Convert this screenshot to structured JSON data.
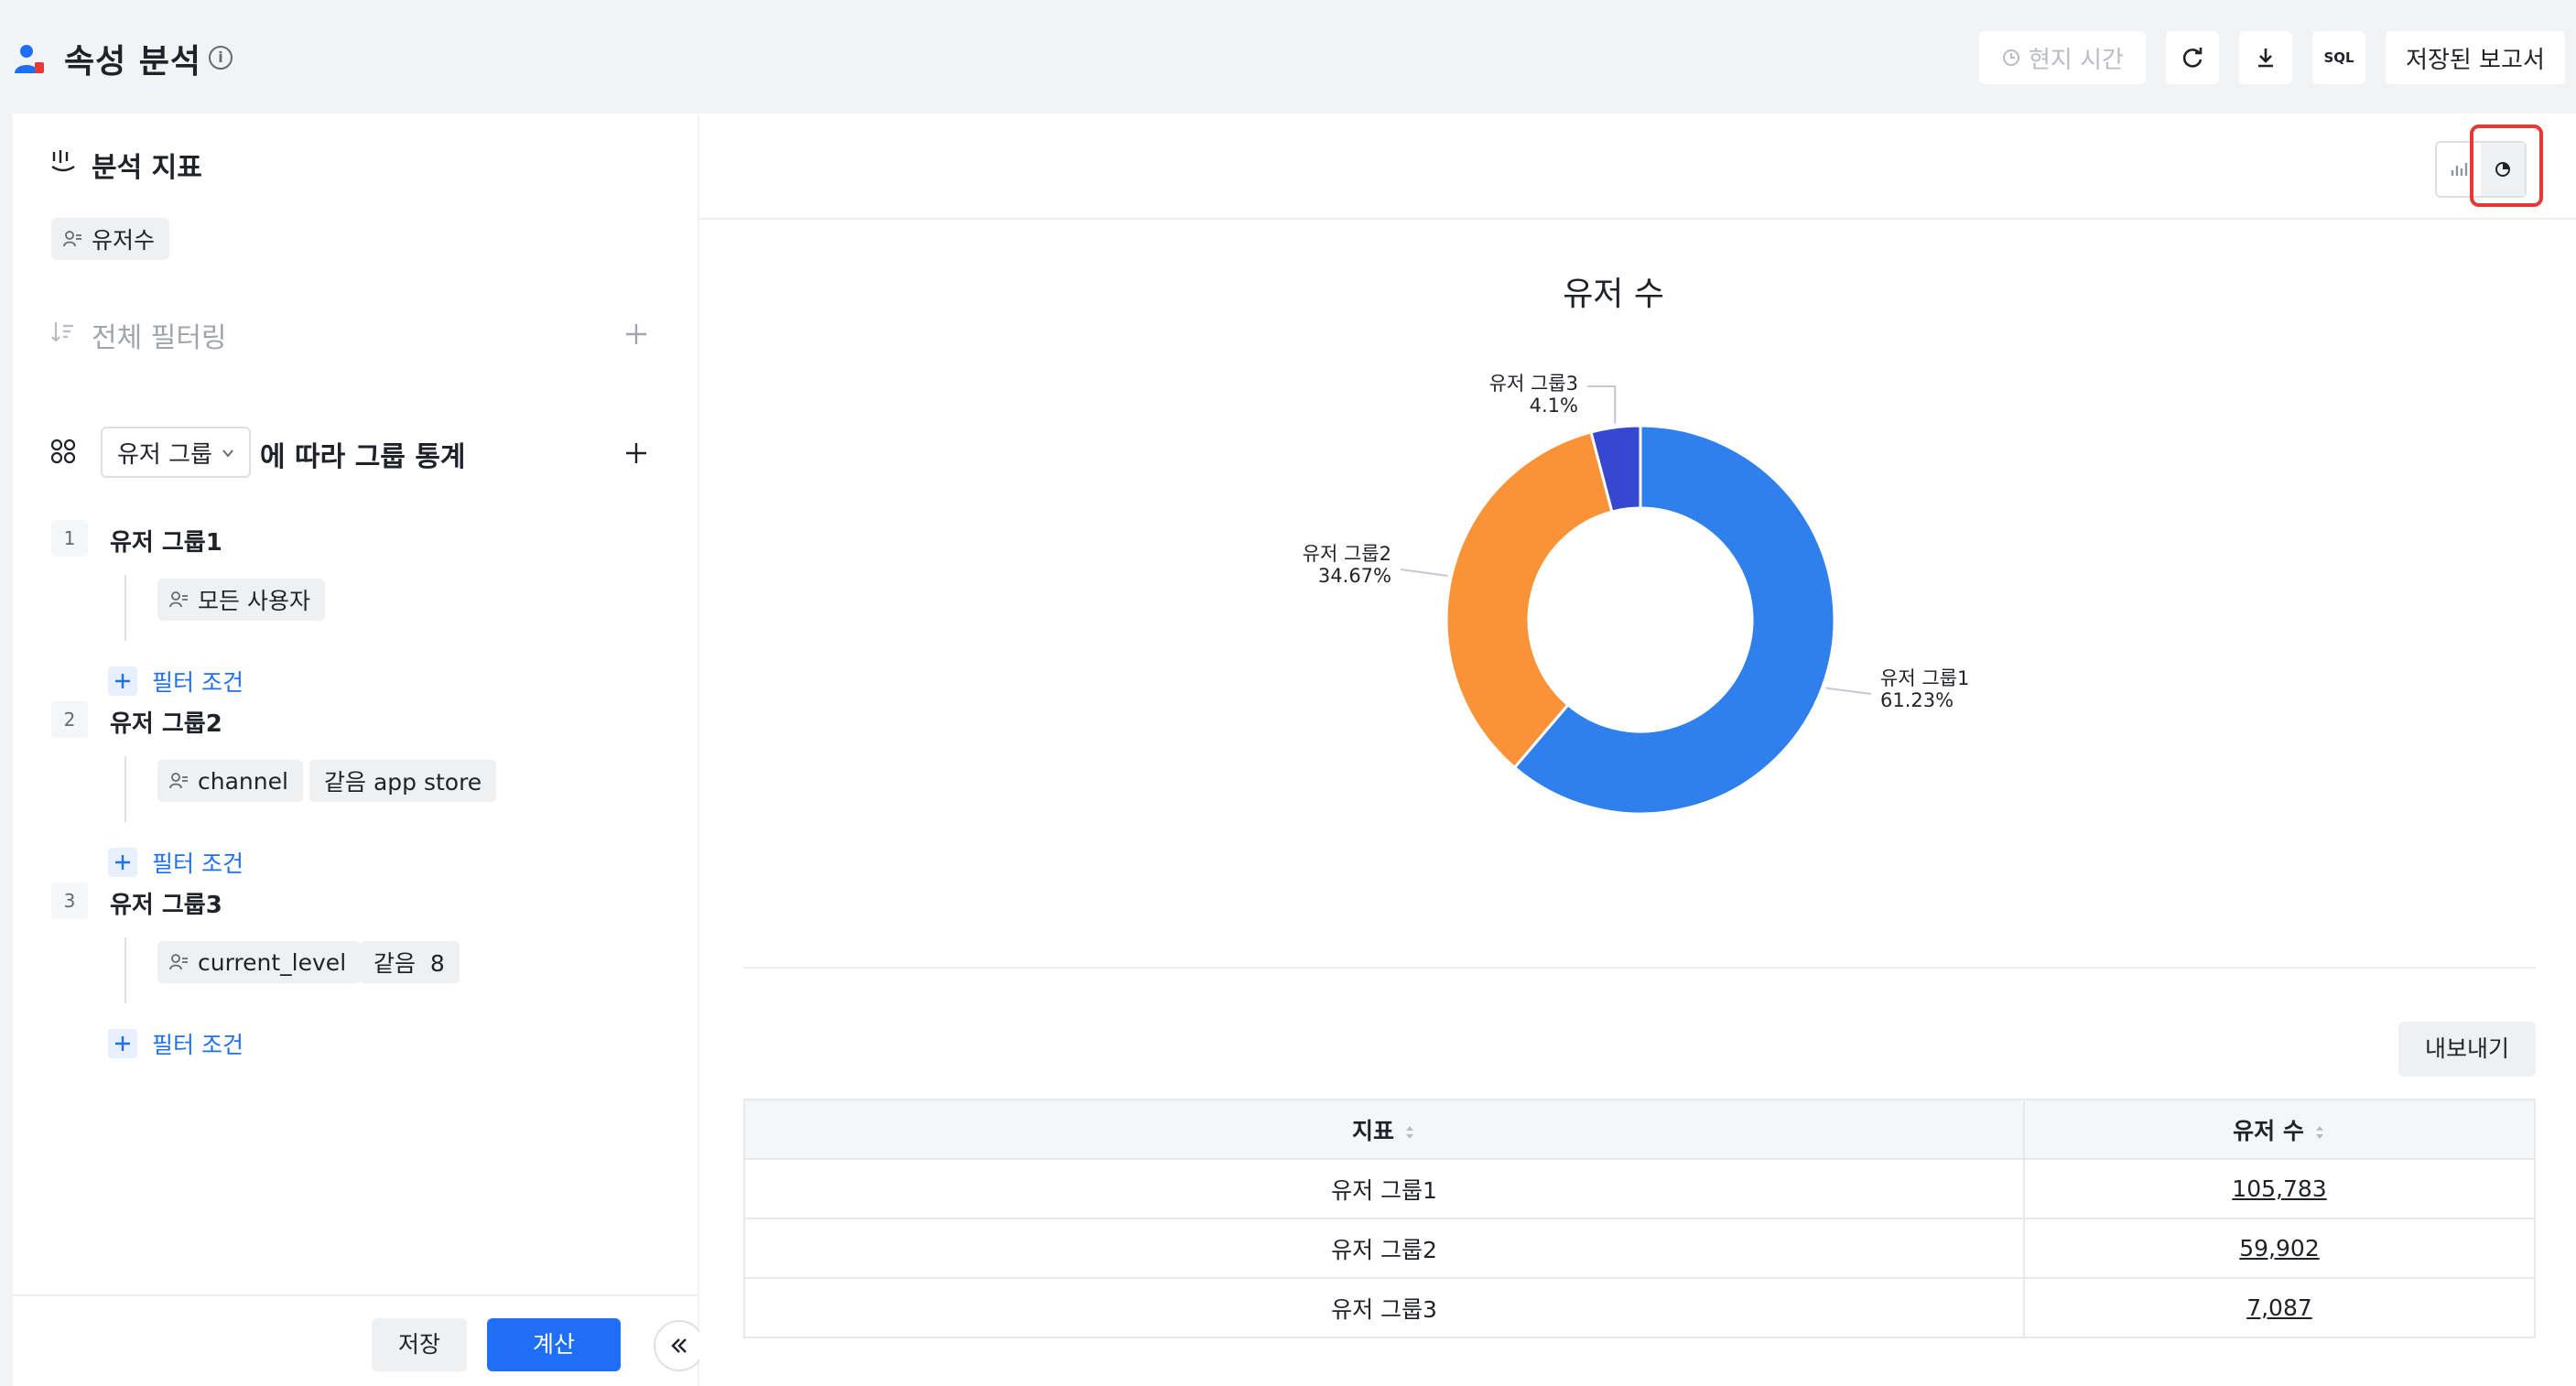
{
  "header": {
    "title": "속성 분석",
    "local_time_label": "현지 시간",
    "sql_label": "SQL",
    "saved_report_label": "저장된 보고서"
  },
  "left": {
    "metrics_title": "분석 지표",
    "metric_chip": "유저수",
    "filter_title": "전체 필터링",
    "group_select": "유저 그룹",
    "group_suffix": "에 따라 그룹 통계",
    "groups": [
      {
        "num": "1",
        "name": "유저 그룹1",
        "chips": [
          "모든 사용자"
        ],
        "add_filter": "필터 조건"
      },
      {
        "num": "2",
        "name": "유저 그룹2",
        "chips": [
          "channel",
          "같음 app store"
        ],
        "add_filter": "필터 조건"
      },
      {
        "num": "3",
        "name": "유저 그룹3",
        "chips": [
          "current_level",
          "같음  8"
        ],
        "add_filter": "필터 조건"
      }
    ],
    "save_label": "저장",
    "calc_label": "계산"
  },
  "chart_data": {
    "type": "pie",
    "title": "유저 수",
    "categories": [
      "유저 그룹1",
      "유저 그룹2",
      "유저 그룹3"
    ],
    "values": [
      61.23,
      34.67,
      4.1
    ],
    "labels": [
      "61.23%",
      "34.67%",
      "4.1%"
    ],
    "colors": [
      "#2f80ed",
      "#fa9338",
      "#3647d0"
    ],
    "donut": true
  },
  "table": {
    "export_label": "내보내기",
    "headers": [
      "지표",
      "유저 수"
    ],
    "rows": [
      {
        "name": "유저 그룹1",
        "value": "105,783"
      },
      {
        "name": "유저 그룹2",
        "value": "59,902"
      },
      {
        "name": "유저 그룹3",
        "value": "7,087"
      }
    ]
  }
}
